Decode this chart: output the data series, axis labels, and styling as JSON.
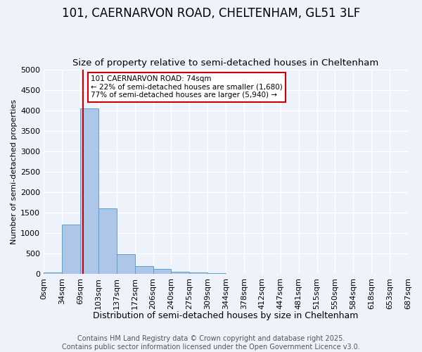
{
  "title1": "101, CAERNARVON ROAD, CHELTENHAM, GL51 3LF",
  "title2": "Size of property relative to semi-detached houses in Cheltenham",
  "xlabel": "Distribution of semi-detached houses by size in Cheltenham",
  "ylabel": "Number of semi-detached properties",
  "bar_color": "#aec6e8",
  "bar_edge_color": "#5a9fd4",
  "bins": [
    "0sqm",
    "34sqm",
    "69sqm",
    "103sqm",
    "137sqm",
    "172sqm",
    "206sqm",
    "240sqm",
    "275sqm",
    "309sqm",
    "344sqm",
    "378sqm",
    "412sqm",
    "447sqm",
    "481sqm",
    "515sqm",
    "550sqm",
    "584sqm",
    "618sqm",
    "653sqm",
    "687sqm"
  ],
  "values": [
    30,
    1200,
    4050,
    1600,
    480,
    200,
    120,
    60,
    40,
    25,
    10,
    5,
    3,
    2,
    1,
    1,
    0,
    0,
    0,
    0
  ],
  "ylim": [
    0,
    5000
  ],
  "yticks": [
    0,
    500,
    1000,
    1500,
    2000,
    2500,
    3000,
    3500,
    4000,
    4500,
    5000
  ],
  "property_size": 74,
  "annotation_title": "101 CAERNARVON ROAD: 74sqm",
  "annotation_line1": "← 22% of semi-detached houses are smaller (1,680)",
  "annotation_line2": "77% of semi-detached houses are larger (5,940) →",
  "red_line_color": "#cc0000",
  "annotation_box_color": "#ffffff",
  "annotation_box_edge": "#cc0000",
  "background_color": "#eef2fb",
  "grid_color": "#ffffff",
  "footer_line1": "Contains HM Land Registry data © Crown copyright and database right 2025.",
  "footer_line2": "Contains public sector information licensed under the Open Government Licence v3.0.",
  "title1_fontsize": 12,
  "title2_fontsize": 9.5,
  "axis_fontsize": 8,
  "ylabel_fontsize": 8,
  "xlabel_fontsize": 9,
  "footer_fontsize": 7,
  "annotation_fontsize": 7.5
}
